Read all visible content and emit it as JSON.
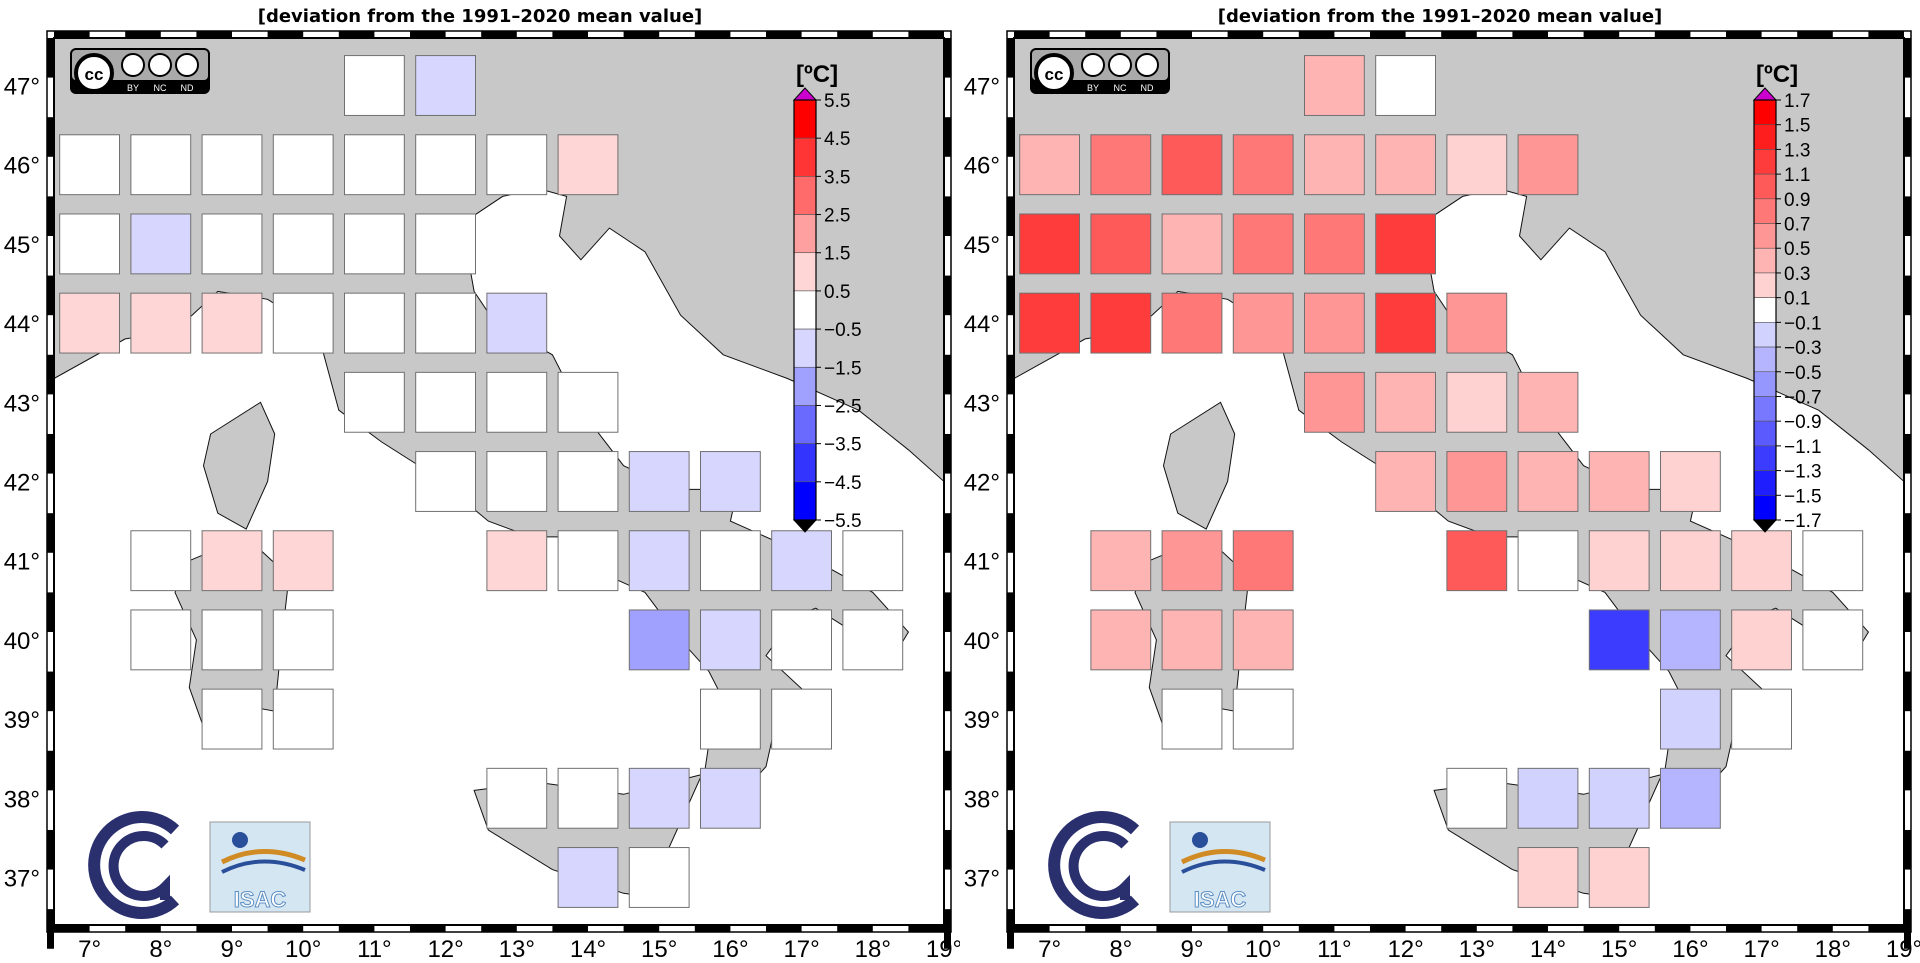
{
  "panels": [
    {
      "title": "[deviation from the 1991–2020 mean value]",
      "unit": "[ºC]",
      "x_ticks": [
        "7°",
        "8°",
        "9°",
        "10°",
        "11°",
        "12°",
        "13°",
        "14°",
        "15°",
        "16°",
        "17°",
        "18°",
        "19°"
      ],
      "y_ticks": [
        "47°",
        "46°",
        "45°",
        "44°",
        "43°",
        "42°",
        "41°",
        "40°",
        "39°",
        "38°",
        "37°"
      ],
      "colorbar_labels": [
        "5.5",
        "4.5",
        "3.5",
        "2.5",
        "1.5",
        "0.5",
        "−0.5",
        "−1.5",
        "−2.5",
        "−3.5",
        "−4.5",
        "−5.5"
      ],
      "colorbar_colors": [
        "#ff0000",
        "#ff3434",
        "#ff6a6a",
        "#ffa0a0",
        "#ffd6d6",
        "#ffffff",
        "#d6d6ff",
        "#a0a0ff",
        "#6a6aff",
        "#3434ff",
        "#0000ff"
      ],
      "cells": [
        {
          "lon": 11,
          "lat": 47,
          "color": "#ffffff"
        },
        {
          "lon": 12,
          "lat": 47,
          "color": "#d6d6ff"
        },
        {
          "lon": 7,
          "lat": 46,
          "color": "#ffffff"
        },
        {
          "lon": 8,
          "lat": 46,
          "color": "#ffffff"
        },
        {
          "lon": 9,
          "lat": 46,
          "color": "#ffffff"
        },
        {
          "lon": 10,
          "lat": 46,
          "color": "#ffffff"
        },
        {
          "lon": 11,
          "lat": 46,
          "color": "#ffffff"
        },
        {
          "lon": 12,
          "lat": 46,
          "color": "#ffffff"
        },
        {
          "lon": 13,
          "lat": 46,
          "color": "#ffffff"
        },
        {
          "lon": 14,
          "lat": 46,
          "color": "#ffd6d6"
        },
        {
          "lon": 7,
          "lat": 45,
          "color": "#ffffff"
        },
        {
          "lon": 8,
          "lat": 45,
          "color": "#d6d6ff"
        },
        {
          "lon": 9,
          "lat": 45,
          "color": "#ffffff"
        },
        {
          "lon": 10,
          "lat": 45,
          "color": "#ffffff"
        },
        {
          "lon": 11,
          "lat": 45,
          "color": "#ffffff"
        },
        {
          "lon": 12,
          "lat": 45,
          "color": "#ffffff"
        },
        {
          "lon": 7,
          "lat": 44,
          "color": "#ffd6d6"
        },
        {
          "lon": 8,
          "lat": 44,
          "color": "#ffd6d6"
        },
        {
          "lon": 9,
          "lat": 44,
          "color": "#ffd6d6"
        },
        {
          "lon": 10,
          "lat": 44,
          "color": "#ffffff"
        },
        {
          "lon": 11,
          "lat": 44,
          "color": "#ffffff"
        },
        {
          "lon": 12,
          "lat": 44,
          "color": "#ffffff"
        },
        {
          "lon": 13,
          "lat": 44,
          "color": "#d6d6ff"
        },
        {
          "lon": 11,
          "lat": 43,
          "color": "#ffffff"
        },
        {
          "lon": 12,
          "lat": 43,
          "color": "#ffffff"
        },
        {
          "lon": 13,
          "lat": 43,
          "color": "#ffffff"
        },
        {
          "lon": 14,
          "lat": 43,
          "color": "#ffffff"
        },
        {
          "lon": 12,
          "lat": 42,
          "color": "#ffffff"
        },
        {
          "lon": 13,
          "lat": 42,
          "color": "#ffffff"
        },
        {
          "lon": 14,
          "lat": 42,
          "color": "#ffffff"
        },
        {
          "lon": 15,
          "lat": 42,
          "color": "#d6d6ff"
        },
        {
          "lon": 16,
          "lat": 42,
          "color": "#d6d6ff"
        },
        {
          "lon": 8,
          "lat": 41,
          "color": "#ffffff"
        },
        {
          "lon": 9,
          "lat": 41,
          "color": "#ffd6d6"
        },
        {
          "lon": 10,
          "lat": 41,
          "color": "#ffd6d6"
        },
        {
          "lon": 13,
          "lat": 41,
          "color": "#ffd6d6"
        },
        {
          "lon": 14,
          "lat": 41,
          "color": "#ffffff"
        },
        {
          "lon": 15,
          "lat": 41,
          "color": "#d6d6ff"
        },
        {
          "lon": 16,
          "lat": 41,
          "color": "#ffffff"
        },
        {
          "lon": 17,
          "lat": 41,
          "color": "#d6d6ff"
        },
        {
          "lon": 18,
          "lat": 41,
          "color": "#ffffff"
        },
        {
          "lon": 8,
          "lat": 40,
          "color": "#ffffff"
        },
        {
          "lon": 9,
          "lat": 40,
          "color": "#ffffff"
        },
        {
          "lon": 10,
          "lat": 40,
          "color": "#ffffff"
        },
        {
          "lon": 15,
          "lat": 40,
          "color": "#a0a0ff"
        },
        {
          "lon": 16,
          "lat": 40,
          "color": "#d6d6ff"
        },
        {
          "lon": 17,
          "lat": 40,
          "color": "#ffffff"
        },
        {
          "lon": 18,
          "lat": 40,
          "color": "#ffffff"
        },
        {
          "lon": 9,
          "lat": 39,
          "color": "#ffffff"
        },
        {
          "lon": 10,
          "lat": 39,
          "color": "#ffffff"
        },
        {
          "lon": 16,
          "lat": 39,
          "color": "#ffffff"
        },
        {
          "lon": 17,
          "lat": 39,
          "color": "#ffffff"
        },
        {
          "lon": 13,
          "lat": 38,
          "color": "#ffffff"
        },
        {
          "lon": 14,
          "lat": 38,
          "color": "#ffffff"
        },
        {
          "lon": 15,
          "lat": 38,
          "color": "#d6d6ff"
        },
        {
          "lon": 16,
          "lat": 38,
          "color": "#d6d6ff"
        },
        {
          "lon": 14,
          "lat": 37,
          "color": "#d6d6ff"
        },
        {
          "lon": 15,
          "lat": 37,
          "color": "#ffffff"
        }
      ]
    },
    {
      "title": "[deviation from the 1991–2020 mean value]",
      "unit": "[ºC]",
      "x_ticks": [
        "7°",
        "8°",
        "9°",
        "10°",
        "11°",
        "12°",
        "13°",
        "14°",
        "15°",
        "16°",
        "17°",
        "18°",
        "19°"
      ],
      "y_ticks": [
        "47°",
        "46°",
        "45°",
        "44°",
        "43°",
        "42°",
        "41°",
        "40°",
        "39°",
        "38°",
        "37°"
      ],
      "colorbar_labels": [
        "1.7",
        "1.5",
        "1.3",
        "1.1",
        "0.9",
        "0.7",
        "0.5",
        "0.3",
        "0.1",
        "−0.1",
        "−0.3",
        "−0.5",
        "−0.7",
        "−0.9",
        "−1.1",
        "−1.3",
        "−1.5",
        "−1.7"
      ],
      "colorbar_colors": [
        "#ff0000",
        "#ff1e1e",
        "#ff3c3c",
        "#ff5a5a",
        "#ff7878",
        "#ff9696",
        "#ffb4b4",
        "#ffd2d2",
        "#ffffff",
        "#d2d2ff",
        "#b4b4ff",
        "#9696ff",
        "#7878ff",
        "#5a5aff",
        "#3c3cff",
        "#1e1eff",
        "#0000ff"
      ],
      "cells": [
        {
          "lon": 11,
          "lat": 47,
          "color": "#ffb4b4"
        },
        {
          "lon": 12,
          "lat": 47,
          "color": "#ffffff"
        },
        {
          "lon": 7,
          "lat": 46,
          "color": "#ffb4b4"
        },
        {
          "lon": 8,
          "lat": 46,
          "color": "#ff7878"
        },
        {
          "lon": 9,
          "lat": 46,
          "color": "#ff5a5a"
        },
        {
          "lon": 10,
          "lat": 46,
          "color": "#ff7878"
        },
        {
          "lon": 11,
          "lat": 46,
          "color": "#ffb4b4"
        },
        {
          "lon": 12,
          "lat": 46,
          "color": "#ffb4b4"
        },
        {
          "lon": 13,
          "lat": 46,
          "color": "#ffd2d2"
        },
        {
          "lon": 14,
          "lat": 46,
          "color": "#ff9696"
        },
        {
          "lon": 7,
          "lat": 45,
          "color": "#ff3c3c"
        },
        {
          "lon": 8,
          "lat": 45,
          "color": "#ff5a5a"
        },
        {
          "lon": 9,
          "lat": 45,
          "color": "#ffb4b4"
        },
        {
          "lon": 10,
          "lat": 45,
          "color": "#ff7878"
        },
        {
          "lon": 11,
          "lat": 45,
          "color": "#ff7878"
        },
        {
          "lon": 12,
          "lat": 45,
          "color": "#ff3c3c"
        },
        {
          "lon": 7,
          "lat": 44,
          "color": "#ff3c3c"
        },
        {
          "lon": 8,
          "lat": 44,
          "color": "#ff3c3c"
        },
        {
          "lon": 9,
          "lat": 44,
          "color": "#ff7878"
        },
        {
          "lon": 10,
          "lat": 44,
          "color": "#ff9696"
        },
        {
          "lon": 11,
          "lat": 44,
          "color": "#ff9696"
        },
        {
          "lon": 12,
          "lat": 44,
          "color": "#ff3c3c"
        },
        {
          "lon": 13,
          "lat": 44,
          "color": "#ff9696"
        },
        {
          "lon": 11,
          "lat": 43,
          "color": "#ff9696"
        },
        {
          "lon": 12,
          "lat": 43,
          "color": "#ffb4b4"
        },
        {
          "lon": 13,
          "lat": 43,
          "color": "#ffd2d2"
        },
        {
          "lon": 14,
          "lat": 43,
          "color": "#ffb4b4"
        },
        {
          "lon": 12,
          "lat": 42,
          "color": "#ffb4b4"
        },
        {
          "lon": 13,
          "lat": 42,
          "color": "#ff9696"
        },
        {
          "lon": 14,
          "lat": 42,
          "color": "#ffb4b4"
        },
        {
          "lon": 15,
          "lat": 42,
          "color": "#ffb4b4"
        },
        {
          "lon": 16,
          "lat": 42,
          "color": "#ffd2d2"
        },
        {
          "lon": 8,
          "lat": 41,
          "color": "#ffb4b4"
        },
        {
          "lon": 9,
          "lat": 41,
          "color": "#ff9696"
        },
        {
          "lon": 10,
          "lat": 41,
          "color": "#ff7878"
        },
        {
          "lon": 13,
          "lat": 41,
          "color": "#ff5a5a"
        },
        {
          "lon": 14,
          "lat": 41,
          "color": "#ffffff"
        },
        {
          "lon": 15,
          "lat": 41,
          "color": "#ffd2d2"
        },
        {
          "lon": 16,
          "lat": 41,
          "color": "#ffd2d2"
        },
        {
          "lon": 17,
          "lat": 41,
          "color": "#ffd2d2"
        },
        {
          "lon": 18,
          "lat": 41,
          "color": "#ffffff"
        },
        {
          "lon": 8,
          "lat": 40,
          "color": "#ffb4b4"
        },
        {
          "lon": 9,
          "lat": 40,
          "color": "#ffb4b4"
        },
        {
          "lon": 10,
          "lat": 40,
          "color": "#ffb4b4"
        },
        {
          "lon": 15,
          "lat": 40,
          "color": "#3c3cff"
        },
        {
          "lon": 16,
          "lat": 40,
          "color": "#b4b4ff"
        },
        {
          "lon": 17,
          "lat": 40,
          "color": "#ffd2d2"
        },
        {
          "lon": 18,
          "lat": 40,
          "color": "#ffffff"
        },
        {
          "lon": 9,
          "lat": 39,
          "color": "#ffffff"
        },
        {
          "lon": 10,
          "lat": 39,
          "color": "#ffffff"
        },
        {
          "lon": 16,
          "lat": 39,
          "color": "#d2d2ff"
        },
        {
          "lon": 17,
          "lat": 39,
          "color": "#ffffff"
        },
        {
          "lon": 13,
          "lat": 38,
          "color": "#ffffff"
        },
        {
          "lon": 14,
          "lat": 38,
          "color": "#d2d2ff"
        },
        {
          "lon": 15,
          "lat": 38,
          "color": "#d2d2ff"
        },
        {
          "lon": 16,
          "lat": 38,
          "color": "#b4b4ff"
        },
        {
          "lon": 14,
          "lat": 37,
          "color": "#ffd2d2"
        },
        {
          "lon": 15,
          "lat": 37,
          "color": "#ffd2d2"
        }
      ]
    }
  ],
  "license_badge": {
    "cc": "cc",
    "by": "BY",
    "nc": "NC",
    "nd": "ND"
  },
  "logos": {
    "isac": "ISAC"
  }
}
